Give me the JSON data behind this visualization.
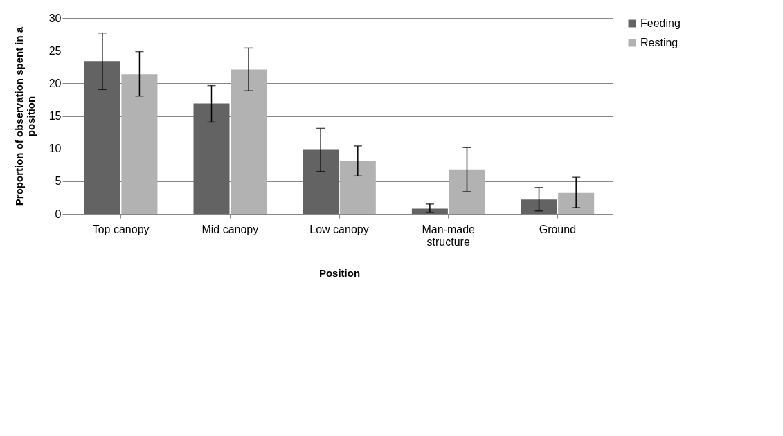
{
  "chart_data": {
    "type": "bar",
    "xlabel": "Position",
    "ylabel": "Proportion of observation spent in a position",
    "categories": [
      "Top canopy",
      "Mid canopy",
      "Low canopy",
      "Man-made structure",
      "Ground"
    ],
    "series": [
      {
        "name": "Feeding",
        "color": "#636363",
        "values": [
          23.4,
          16.9,
          9.8,
          0.8,
          2.2
        ],
        "errors": [
          [
            19.05,
            27.7
          ],
          [
            14.05,
            19.65
          ],
          [
            6.5,
            13.1
          ],
          [
            0.2,
            1.5
          ],
          [
            0.45,
            4.05
          ]
        ]
      },
      {
        "name": "Resting",
        "color": "#b2b2b2",
        "values": [
          21.4,
          22.1,
          8.1,
          6.8,
          3.2
        ],
        "errors": [
          [
            18.05,
            24.85
          ],
          [
            18.85,
            25.4
          ],
          [
            5.8,
            10.4
          ],
          [
            3.4,
            10.15
          ],
          [
            0.95,
            5.6
          ]
        ]
      }
    ],
    "ylim": [
      0,
      30
    ],
    "yticks": [
      0,
      5,
      10,
      15,
      20,
      25,
      30
    ],
    "grid": "y",
    "legend": "right"
  }
}
